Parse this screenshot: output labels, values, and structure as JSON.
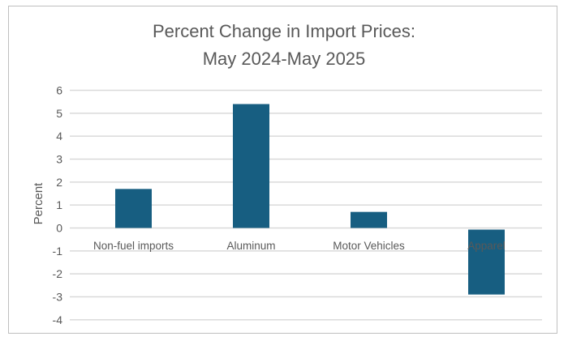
{
  "chart_data": {
    "type": "bar",
    "title": [
      "Percent Change in Import Prices:",
      "May 2024-May 2025"
    ],
    "xlabel": "",
    "ylabel": "Percent",
    "categories": [
      "Non-fuel imports",
      "Aluminum",
      "Motor Vehicles",
      "Apparel"
    ],
    "values": [
      1.7,
      5.4,
      0.7,
      -2.9
    ],
    "ylim": [
      -4,
      6
    ],
    "yticks": [
      "-4",
      "-3",
      "-2",
      "-1",
      "0",
      "1",
      "2",
      "3",
      "4",
      "5",
      "6"
    ],
    "grid": true,
    "legend": "none",
    "bar_color": "#175e81",
    "grid_color": "#d9d9d9"
  }
}
